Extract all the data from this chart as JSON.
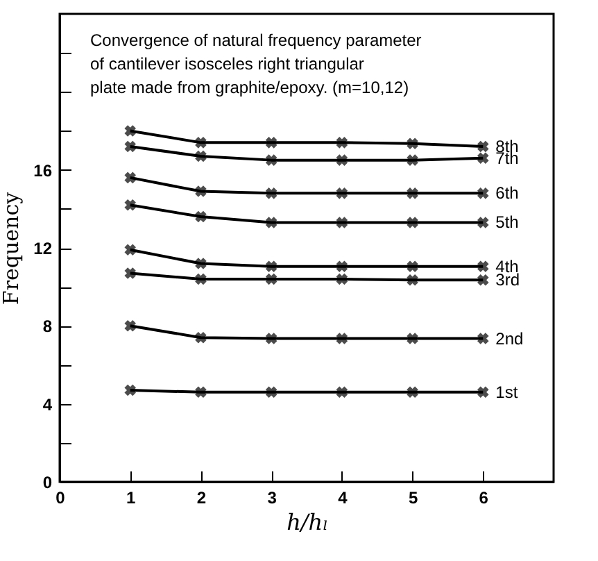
{
  "chart_data": {
    "type": "line",
    "title": "Convergence of natural frequency parameter of cantilever isosceles right triangular plate made from graphite/epoxy. (m=10,12)",
    "xlabel": "h/hₗ",
    "ylabel": "Frequency",
    "x": [
      1,
      2,
      3,
      4,
      5,
      6
    ],
    "series": [
      {
        "name": "1st",
        "color": "#000000",
        "values": [
          4.7,
          4.6,
          4.6,
          4.6,
          4.6,
          4.6
        ]
      },
      {
        "name": "2nd",
        "color": "#000000",
        "values": [
          8.0,
          7.4,
          7.35,
          7.35,
          7.35,
          7.35
        ]
      },
      {
        "name": "3rd",
        "color": "#000000",
        "values": [
          10.7,
          10.4,
          10.4,
          10.4,
          10.35,
          10.35
        ]
      },
      {
        "name": "4th",
        "color": "#000000",
        "values": [
          11.9,
          11.2,
          11.05,
          11.05,
          11.05,
          11.05
        ]
      },
      {
        "name": "5th",
        "color": "#000000",
        "values": [
          14.2,
          13.6,
          13.3,
          13.3,
          13.3,
          13.3
        ]
      },
      {
        "name": "6th",
        "color": "#000000",
        "values": [
          15.6,
          14.9,
          14.8,
          14.8,
          14.8,
          14.8
        ]
      },
      {
        "name": "7th",
        "color": "#000000",
        "values": [
          17.2,
          16.7,
          16.5,
          16.5,
          16.5,
          16.6
        ]
      },
      {
        "name": "8th",
        "color": "#000000",
        "values": [
          18.0,
          17.4,
          17.4,
          17.4,
          17.35,
          17.2
        ]
      }
    ],
    "xlim": [
      0,
      7
    ],
    "xticks": [
      0,
      1,
      2,
      3,
      4,
      5,
      6
    ],
    "ylim": [
      0,
      24
    ],
    "yticks": [
      0,
      {
        "value": 2,
        "label": null
      },
      4,
      {
        "value": 6,
        "label": null
      },
      8,
      {
        "value": 10,
        "label": null
      },
      12,
      {
        "value": 14,
        "label": null
      },
      16,
      {
        "value": 18,
        "label": null
      },
      {
        "value": 20,
        "label": null
      },
      {
        "value": 22,
        "label": null
      }
    ],
    "grid": false,
    "marker": "cross",
    "line_style": "solid"
  }
}
